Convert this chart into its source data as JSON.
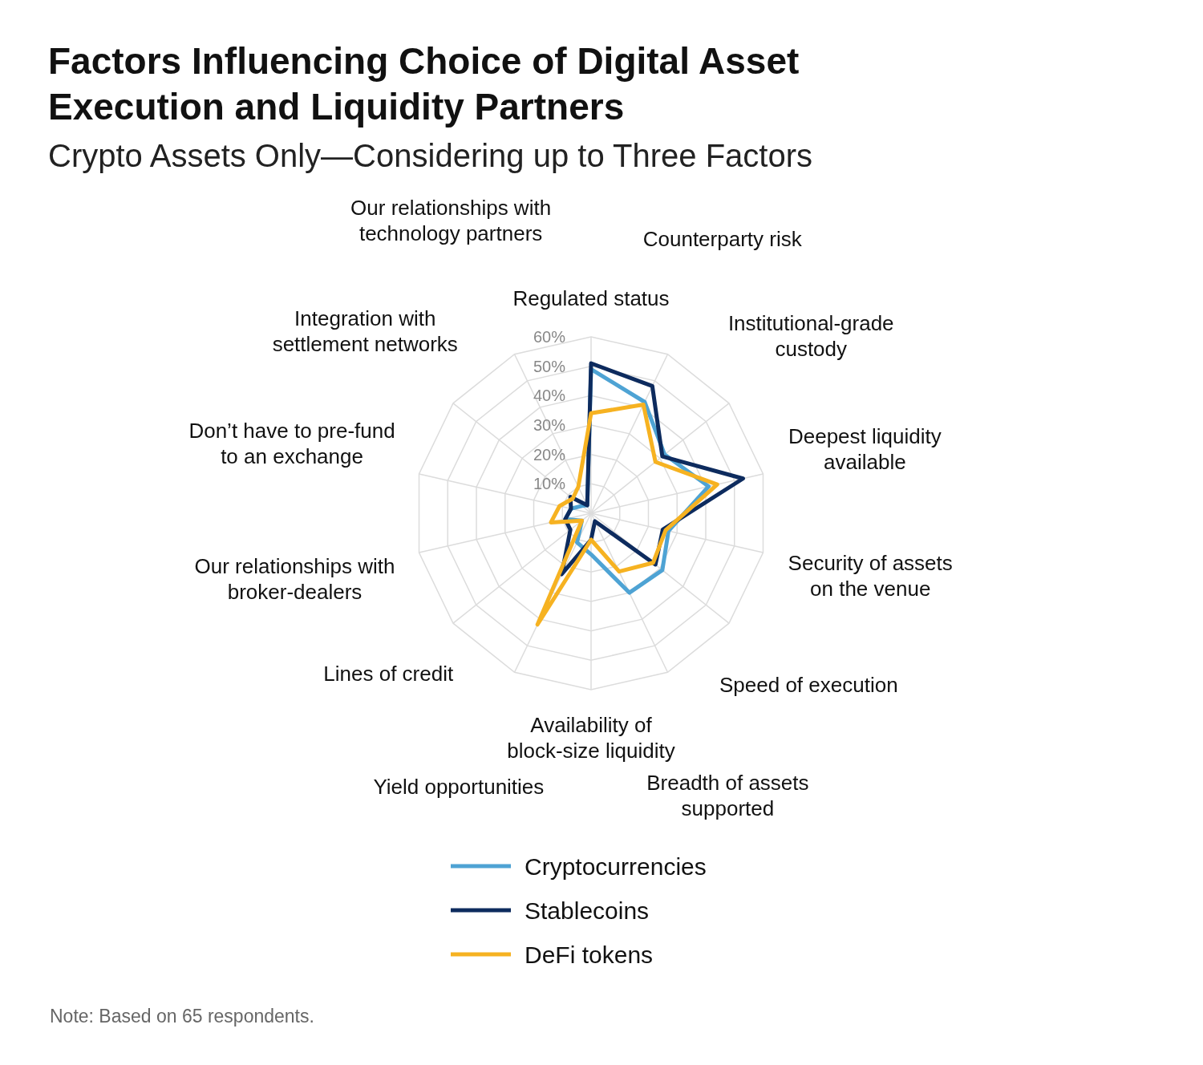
{
  "chart_data": {
    "type": "radar",
    "title": "Factors Influencing Choice of Digital Asset\nExecution and Liquidity Partners",
    "subtitle": "Crypto Assets Only—Considering up to Three Factors",
    "categories": [
      "Regulated status",
      "Counterparty risk",
      "Institutional-grade\ncustody",
      "Deepest liquidity\navailable",
      "Security of assets\non the venue",
      "Speed of execution",
      "Breadth of assets\nsupported",
      "Availability of\nblock-size liquidity",
      "Yield opportunities",
      "Lines of credit",
      "Our relationships with\nbroker-dealers",
      "Don’t have to pre-fund\nto an exchange",
      "Integration with\nsettlement networks",
      "Our relationships with\ntechnology partners"
    ],
    "series": [
      {
        "name": "Cryptocurrencies",
        "color": "#4ea3d4",
        "values": [
          49,
          42,
          32,
          41,
          27,
          31,
          30,
          14,
          11,
          4,
          9,
          7,
          4,
          3
        ]
      },
      {
        "name": "Stablecoins",
        "color": "#0d2b5e",
        "values": [
          51,
          48,
          31,
          53,
          25,
          28,
          3,
          9,
          23,
          9,
          9,
          7,
          9,
          3
        ]
      },
      {
        "name": "DeFi tokens",
        "color": "#f6b221",
        "values": [
          34,
          41,
          28,
          44,
          26,
          27,
          22,
          9,
          42,
          4,
          14,
          11,
          8,
          10
        ]
      }
    ],
    "ylim": [
      0,
      60
    ],
    "yticks": [
      {
        "value": 10,
        "label": "10%"
      },
      {
        "value": 20,
        "label": "20%"
      },
      {
        "value": 30,
        "label": "30%"
      },
      {
        "value": 40,
        "label": "40%"
      },
      {
        "value": 50,
        "label": "50%"
      },
      {
        "value": 60,
        "label": "60%"
      }
    ],
    "grid": true,
    "legend": "bottom",
    "marker": "none",
    "line_style": "solid",
    "annotations": [
      "Note: Based on 65 respondents."
    ]
  }
}
